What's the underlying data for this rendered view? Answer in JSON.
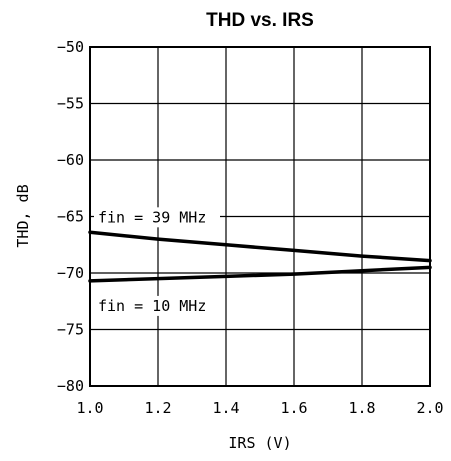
{
  "chart_data": {
    "type": "line",
    "title": "THD vs. IRS",
    "xlabel": "IRS (V)",
    "ylabel": "THD, dB",
    "xlim": [
      1.0,
      2.0
    ],
    "ylim": [
      -80,
      -50
    ],
    "x_ticks": [
      "1.0",
      "1.2",
      "1.4",
      "1.6",
      "1.8",
      "2.0"
    ],
    "y_ticks": [
      "-50",
      "-55",
      "-60",
      "-65",
      "-70",
      "-75",
      "-80"
    ],
    "grid": true,
    "series": [
      {
        "name": "fin = 39 MHz",
        "x": [
          1.0,
          1.2,
          1.4,
          1.6,
          1.8,
          2.0
        ],
        "y": [
          -66.4,
          -67.0,
          -67.5,
          -68.0,
          -68.5,
          -68.9
        ]
      },
      {
        "name": "fin = 10 MHz",
        "x": [
          1.0,
          1.2,
          1.4,
          1.6,
          1.8,
          2.0
        ],
        "y": [
          -70.7,
          -70.5,
          -70.3,
          -70.1,
          -69.8,
          -69.5
        ]
      }
    ]
  }
}
